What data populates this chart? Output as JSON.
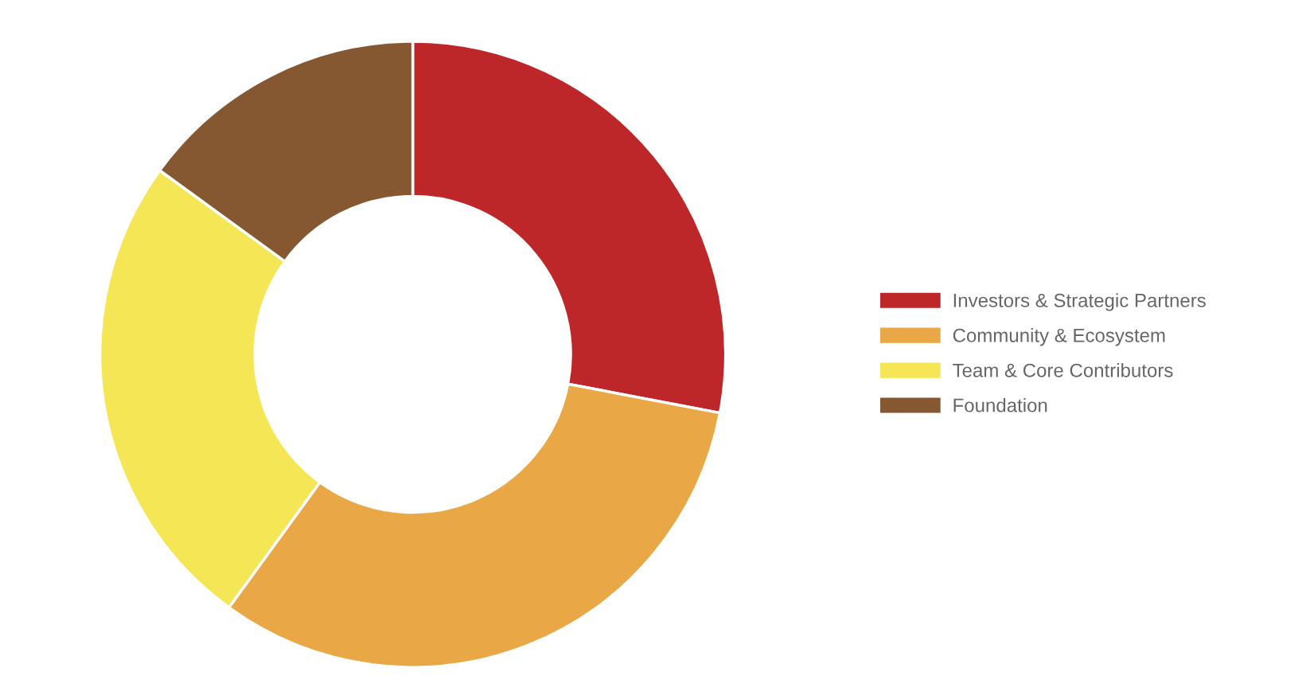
{
  "chart_data": {
    "type": "donut",
    "categories": [
      "Investors & Strategic Partners",
      "Community & Ecosystem",
      "Team & Core Contributors",
      "Foundation"
    ],
    "values": [
      28,
      32,
      25,
      15
    ],
    "colors": [
      "#be2729",
      "#e9a845",
      "#f5e655",
      "#855832"
    ],
    "legend": "right"
  }
}
